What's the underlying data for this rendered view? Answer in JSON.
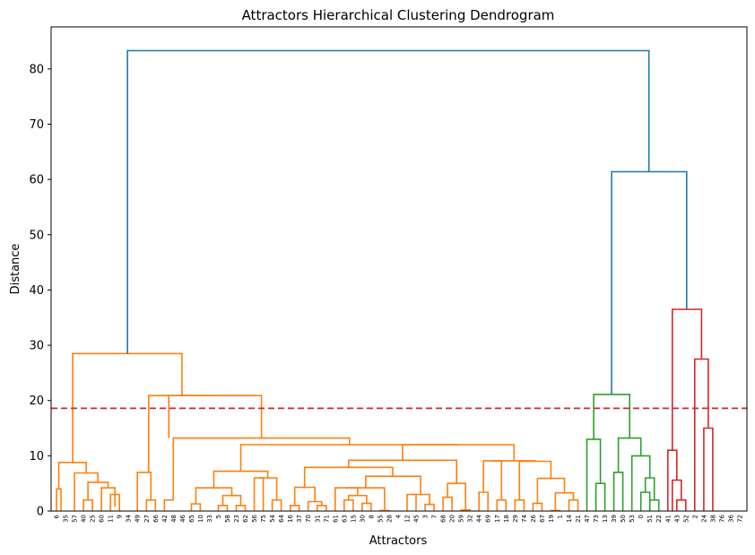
{
  "chart_data": {
    "type": "dendrogram",
    "title": "Attractors Hierarchical Clustering Dendrogram",
    "xlabel": "Attractors",
    "ylabel": "Distance",
    "ylim": [
      0,
      87.6
    ],
    "yticks": [
      0,
      10,
      20,
      30,
      40,
      50,
      60,
      70,
      80
    ],
    "leaves": [
      "6",
      "35",
      "57",
      "40",
      "25",
      "60",
      "11",
      "9",
      "34",
      "49",
      "27",
      "66",
      "42",
      "48",
      "46",
      "65",
      "10",
      "33",
      "5",
      "58",
      "23",
      "62",
      "56",
      "75",
      "54",
      "64",
      "16",
      "37",
      "70",
      "31",
      "71",
      "61",
      "63",
      "15",
      "30",
      "8",
      "55",
      "28",
      "4",
      "12",
      "45",
      "3",
      "7",
      "68",
      "20",
      "59",
      "32",
      "44",
      "69",
      "17",
      "18",
      "29",
      "74",
      "26",
      "67",
      "19",
      "1",
      "14",
      "21",
      "47",
      "73",
      "13",
      "39",
      "50",
      "53",
      "0",
      "51",
      "22",
      "41",
      "43",
      "52",
      "2",
      "24",
      "38",
      "76",
      "36",
      "72"
    ],
    "threshold": 18.6,
    "threshold_color": "#d62728",
    "cluster_colors": [
      "#ff7f0e",
      "#2ca02c",
      "#d62728"
    ],
    "link_color_above": "#1f77b4",
    "links": [
      {
        "xs": [
          0,
          0,
          0.5,
          0.5
        ],
        "ys": [
          0,
          4,
          4,
          0
        ],
        "c": 0
      },
      {
        "xs": [
          3,
          3,
          4,
          4
        ],
        "ys": [
          0,
          2,
          2,
          0
        ],
        "c": 0
      },
      {
        "xs": [
          6,
          6,
          7,
          7
        ],
        "ys": [
          0,
          3,
          3,
          0
        ],
        "c": 0
      },
      {
        "xs": [
          5,
          5,
          6.5,
          6.5
        ],
        "ys": [
          0,
          4.2,
          4.2,
          0.8
        ],
        "c": 0
      },
      {
        "xs": [
          3.5,
          3.5,
          5.75,
          5.75
        ],
        "ys": [
          2,
          5.2,
          5.2,
          4.2
        ],
        "c": 0
      },
      {
        "xs": [
          2,
          2,
          4.6,
          4.6
        ],
        "ys": [
          0,
          6.9,
          6.9,
          5.2
        ],
        "c": 0
      },
      {
        "xs": [
          0.25,
          0.25,
          3.3,
          3.3
        ],
        "ys": [
          4,
          8.8,
          8.8,
          6.9
        ],
        "c": 0
      },
      {
        "xs": [
          10,
          10,
          11,
          11
        ],
        "ys": [
          0,
          2,
          2,
          0
        ],
        "c": 0
      },
      {
        "xs": [
          9,
          9,
          10.5,
          10.5
        ],
        "ys": [
          0,
          7,
          7,
          2
        ],
        "c": 0
      },
      {
        "xs": [
          15,
          15,
          16,
          16
        ],
        "ys": [
          0,
          1.3,
          1.3,
          0
        ],
        "c": 0
      },
      {
        "xs": [
          18,
          18,
          19,
          19
        ],
        "ys": [
          0,
          1,
          1,
          0
        ],
        "c": 0
      },
      {
        "xs": [
          20,
          20,
          21,
          21
        ],
        "ys": [
          0,
          1,
          1,
          0
        ],
        "c": 0
      },
      {
        "xs": [
          18.5,
          18.5,
          20.5,
          20.5
        ],
        "ys": [
          1,
          2.8,
          2.8,
          1
        ],
        "c": 0
      },
      {
        "xs": [
          15.5,
          15.5,
          19.5,
          19.5
        ],
        "ys": [
          1.3,
          4.2,
          4.2,
          2.8
        ],
        "c": 0
      },
      {
        "xs": [
          22,
          22,
          23,
          23
        ],
        "ys": [
          0,
          6,
          6,
          0
        ],
        "c": 0
      },
      {
        "xs": [
          24,
          24,
          25,
          25
        ],
        "ys": [
          0,
          2,
          2,
          0
        ],
        "c": 0
      },
      {
        "xs": [
          22.5,
          22.5,
          24.5,
          24.5
        ],
        "ys": [
          6,
          6,
          6,
          2
        ],
        "c": 0
      },
      {
        "xs": [
          17.5,
          17.5,
          23.5,
          23.5
        ],
        "ys": [
          4.2,
          7.2,
          7.2,
          6
        ],
        "c": 0
      },
      {
        "xs": [
          26,
          26,
          27,
          27
        ],
        "ys": [
          0,
          1,
          1,
          0
        ],
        "c": 0
      },
      {
        "xs": [
          29,
          29,
          30,
          30
        ],
        "ys": [
          0,
          1,
          1,
          0
        ],
        "c": 0
      },
      {
        "xs": [
          28,
          28,
          29.5,
          29.5
        ],
        "ys": [
          0,
          1.7,
          1.7,
          1
        ],
        "c": 0
      },
      {
        "xs": [
          26.5,
          26.5,
          28.75,
          28.75
        ],
        "ys": [
          1,
          4.3,
          4.3,
          1.7
        ],
        "c": 0
      },
      {
        "xs": [
          32,
          32,
          33,
          33
        ],
        "ys": [
          0,
          2,
          2,
          0
        ],
        "c": 0
      },
      {
        "xs": [
          34,
          34,
          35,
          35
        ],
        "ys": [
          0,
          1.4,
          1.4,
          0
        ],
        "c": 0
      },
      {
        "xs": [
          32.5,
          32.5,
          34.5,
          34.5
        ],
        "ys": [
          2,
          2.8,
          2.8,
          1.4
        ],
        "c": 0
      },
      {
        "xs": [
          31,
          31,
          33.5,
          33.5
        ],
        "ys": [
          0,
          4.2,
          4.2,
          2.8
        ],
        "c": 0
      },
      {
        "xs": [
          36,
          36,
          37,
          37
        ],
        "ys": [
          0,
          0.1,
          0.1,
          0
        ],
        "c": 0
      },
      {
        "xs": [
          32.25,
          32.25,
          36.5,
          36.5
        ],
        "ys": [
          4.2,
          4.2,
          4.2,
          0.1
        ],
        "c": 0
      },
      {
        "xs": [
          39,
          39,
          40,
          40
        ],
        "ys": [
          0,
          3,
          3,
          0
        ],
        "c": 0
      },
      {
        "xs": [
          41,
          41,
          42,
          42
        ],
        "ys": [
          0,
          1.2,
          1.2,
          0
        ],
        "c": 0
      },
      {
        "xs": [
          39.5,
          39.5,
          41.5,
          41.5
        ],
        "ys": [
          3,
          3,
          3,
          1.2
        ],
        "c": 0
      },
      {
        "xs": [
          34.4,
          34.4,
          40.5,
          40.5
        ],
        "ys": [
          4.2,
          6.3,
          6.3,
          3
        ],
        "c": 0
      },
      {
        "xs": [
          27.6,
          27.6,
          37.4,
          37.4
        ],
        "ys": [
          4.3,
          7.9,
          7.9,
          6.3
        ],
        "c": 0
      },
      {
        "xs": [
          43,
          43,
          44,
          44
        ],
        "ys": [
          0,
          2.5,
          2.5,
          0
        ],
        "c": 0
      },
      {
        "xs": [
          45,
          45,
          46,
          46
        ],
        "ys": [
          0,
          0.2,
          0.2,
          0
        ],
        "c": 0
      },
      {
        "xs": [
          43.5,
          43.5,
          45.5,
          45.5
        ],
        "ys": [
          2.5,
          5,
          5,
          0.2
        ],
        "c": 0
      },
      {
        "xs": [
          32.5,
          32.5,
          44.5,
          44.5
        ],
        "ys": [
          7.9,
          9.2,
          9.2,
          5
        ],
        "c": 0
      },
      {
        "xs": [
          47,
          47,
          48,
          48
        ],
        "ys": [
          0,
          3.4,
          3.4,
          0
        ],
        "c": 0
      },
      {
        "xs": [
          49,
          49,
          50,
          50
        ],
        "ys": [
          0,
          2,
          2,
          0
        ],
        "c": 0
      },
      {
        "xs": [
          47.5,
          47.5,
          49.5,
          49.5
        ],
        "ys": [
          3.4,
          9.1,
          9.1,
          2
        ],
        "c": 0
      },
      {
        "xs": [
          51,
          51,
          52,
          52
        ],
        "ys": [
          0,
          2,
          2,
          0
        ],
        "c": 0
      },
      {
        "xs": [
          53,
          53,
          54,
          54
        ],
        "ys": [
          0,
          1.4,
          1.4,
          0
        ],
        "c": 0
      },
      {
        "xs": [
          55,
          55,
          56,
          56
        ],
        "ys": [
          0,
          0.1,
          0.1,
          0
        ],
        "c": 0
      },
      {
        "xs": [
          57,
          57,
          58,
          58
        ],
        "ys": [
          0,
          2,
          2,
          0
        ],
        "c": 0
      },
      {
        "xs": [
          55.5,
          55.5,
          57.5,
          57.5
        ],
        "ys": [
          0.1,
          3.3,
          3.3,
          2
        ],
        "c": 0
      },
      {
        "xs": [
          53.5,
          53.5,
          56.5,
          56.5
        ],
        "ys": [
          1.4,
          5.9,
          5.9,
          3.3
        ],
        "c": 0
      },
      {
        "xs": [
          51.5,
          51.5,
          55,
          55
        ],
        "ys": [
          2,
          9,
          9,
          5.9
        ],
        "c": 0
      },
      {
        "xs": [
          48.5,
          48.5,
          53.25,
          53.25
        ],
        "ys": [
          9.1,
          9.1,
          9.1,
          9
        ],
        "c": 0
      },
      {
        "xs": [
          38.5,
          38.5,
          50.9,
          50.9
        ],
        "ys": [
          9.2,
          12,
          12,
          9.1
        ],
        "c": 0
      },
      {
        "xs": [
          20.5,
          20.5,
          44.7,
          44.7
        ],
        "ys": [
          7.2,
          12,
          12,
          12
        ],
        "c": 0
      },
      {
        "xs": [
          13,
          13,
          32.6,
          32.6
        ],
        "ys": [
          2,
          13.2,
          13.2,
          12
        ],
        "c": 0
      },
      {
        "xs": [
          12,
          12,
          13,
          13
        ],
        "ys": [
          0,
          2,
          2,
          2
        ],
        "c": 0
      },
      {
        "xs": [
          12.5,
          12.5,
          22.8,
          22.8
        ],
        "ys": [
          13.2,
          20.9,
          20.9,
          13.2
        ],
        "c": 0
      },
      {
        "xs": [
          10.25,
          10.25,
          17.65,
          17.65
        ],
        "ys": [
          7,
          20.9,
          20.9,
          20.9
        ],
        "c": 0
      },
      {
        "xs": [
          1.8,
          1.8,
          13.95,
          13.95
        ],
        "ys": [
          8.8,
          28.5,
          28.5,
          20.9
        ],
        "c": 0
      },
      {
        "xs": [
          60,
          60,
          61,
          61
        ],
        "ys": [
          0,
          5,
          5,
          0
        ],
        "c": 1
      },
      {
        "xs": [
          59,
          59,
          60.5,
          60.5
        ],
        "ys": [
          0,
          13,
          13,
          5
        ],
        "c": 1
      },
      {
        "xs": [
          62,
          62,
          63,
          63
        ],
        "ys": [
          0,
          7,
          7,
          0
        ],
        "c": 1
      },
      {
        "xs": [
          65,
          65,
          66,
          66
        ],
        "ys": [
          0,
          3.4,
          3.4,
          0
        ],
        "c": 1
      },
      {
        "xs": [
          66,
          66,
          67,
          67
        ],
        "ys": [
          0,
          2,
          2,
          0
        ],
        "c": 1
      },
      {
        "xs": [
          65.5,
          65.5,
          66.5,
          66.5
        ],
        "ys": [
          3.4,
          6,
          6,
          2
        ],
        "c": 1
      },
      {
        "xs": [
          64,
          64,
          66,
          66
        ],
        "ys": [
          0,
          10,
          10,
          6
        ],
        "c": 1
      },
      {
        "xs": [
          62.5,
          62.5,
          65,
          65
        ],
        "ys": [
          7,
          13.2,
          13.2,
          10
        ],
        "c": 1
      },
      {
        "xs": [
          59.75,
          59.75,
          63.75,
          63.75
        ],
        "ys": [
          13,
          21.1,
          21.1,
          13.2
        ],
        "c": 1
      },
      {
        "xs": [
          69,
          69,
          70,
          70
        ],
        "ys": [
          0,
          2,
          2,
          0
        ],
        "c": 2
      },
      {
        "xs": [
          68.5,
          68.5,
          69.5,
          69.5
        ],
        "ys": [
          0,
          5.6,
          5.6,
          2
        ],
        "c": 2
      },
      {
        "xs": [
          68,
          68,
          69,
          69
        ],
        "ys": [
          0,
          11,
          11,
          5.6
        ],
        "c": 2
      },
      {
        "xs": [
          72,
          72,
          73,
          73
        ],
        "ys": [
          0,
          15,
          15,
          0
        ],
        "c": 2
      },
      {
        "xs": [
          71,
          71,
          72.5,
          72.5
        ],
        "ys": [
          0,
          27.5,
          27.5,
          15
        ],
        "c": 2
      },
      {
        "xs": [
          68.5,
          68.5,
          71.75,
          71.75
        ],
        "ys": [
          11,
          36.5,
          36.5,
          27.5
        ],
        "c": 2
      },
      {
        "xs": [
          61.75,
          61.75,
          70.1,
          70.1
        ],
        "ys": [
          21.1,
          61.4,
          61.4,
          36.5
        ],
        "c": -1
      },
      {
        "xs": [
          7.9,
          7.9,
          65.9,
          65.9
        ],
        "ys": [
          28.5,
          83.3,
          83.3,
          61.4
        ],
        "c": -1
      }
    ]
  }
}
